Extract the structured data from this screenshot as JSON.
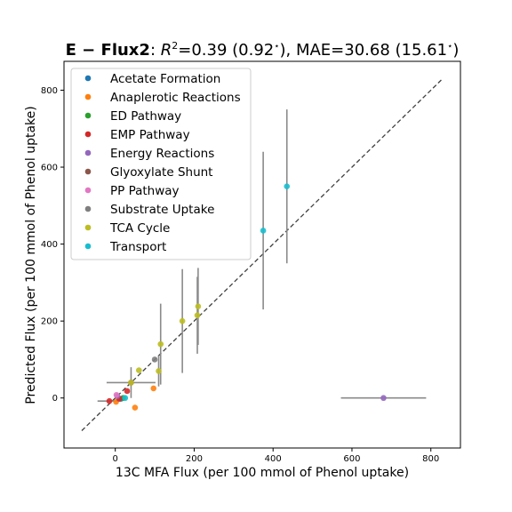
{
  "chart_data": {
    "type": "scatter",
    "title": {
      "model": "E − Flux2",
      "r2_label": "R",
      "r2_sup": "2",
      "stats": "=0.39 (0.92",
      "star": "⋆",
      "mid": "), MAE=30.68 (15.61",
      "end": ")"
    },
    "xlabel": "13C MFA Flux (per 100 mmol of Phenol uptake)",
    "ylabel": "Predicted Flux (per 100 mmol of Phenol uptake)",
    "xlim": [
      -130,
      875
    ],
    "ylim": [
      -130,
      875
    ],
    "xticks": [
      0,
      200,
      400,
      600,
      800
    ],
    "yticks": [
      0,
      200,
      400,
      600,
      800
    ],
    "identity_line": [
      -85,
      830
    ],
    "legend_position": "upper-left",
    "colors": {
      "Acetate Formation": "#1f77b4",
      "Anaplerotic Reactions": "#ff7f0e",
      "ED Pathway": "#2ca02c",
      "EMP Pathway": "#d62728",
      "Energy Reactions": "#9467bd",
      "Glyoxylate Shunt": "#8c564b",
      "PP Pathway": "#e377c2",
      "Substrate Uptake": "#7f7f7f",
      "TCA Cycle": "#bcbd22",
      "Transport": "#17becf"
    },
    "series": [
      {
        "name": "Acetate Formation",
        "points": [
          {
            "x": 15,
            "y": -2,
            "xerr": 10,
            "yerr": 5
          }
        ]
      },
      {
        "name": "Anaplerotic Reactions",
        "points": [
          {
            "x": 97,
            "y": 25,
            "xerr": 0,
            "yerr": 0
          },
          {
            "x": 50,
            "y": -25,
            "xerr": 0,
            "yerr": 0
          },
          {
            "x": 2,
            "y": -10,
            "xerr": 0,
            "yerr": 0
          }
        ]
      },
      {
        "name": "ED Pathway",
        "points": [
          {
            "x": 20,
            "y": 0,
            "xerr": 0,
            "yerr": 0
          }
        ]
      },
      {
        "name": "EMP Pathway",
        "points": [
          {
            "x": -15,
            "y": -8,
            "xerr": 30,
            "yerr": 0
          },
          {
            "x": 30,
            "y": 18,
            "xerr": 0,
            "yerr": 0
          },
          {
            "x": 10,
            "y": -2,
            "xerr": 0,
            "yerr": 0
          }
        ]
      },
      {
        "name": "Energy Reactions",
        "points": [
          {
            "x": 680,
            "y": 0,
            "xerr": 108,
            "yerr": 0
          },
          {
            "x": 5,
            "y": 5,
            "xerr": 0,
            "yerr": 0
          }
        ]
      },
      {
        "name": "Glyoxylate Shunt",
        "points": [
          {
            "x": 40,
            "y": 40,
            "xerr": 0,
            "yerr": 0
          }
        ]
      },
      {
        "name": "PP Pathway",
        "points": [
          {
            "x": 3,
            "y": 8,
            "xerr": 0,
            "yerr": 0
          }
        ]
      },
      {
        "name": "Substrate Uptake",
        "points": [
          {
            "x": 100,
            "y": 100,
            "xerr": 0,
            "yerr": 0
          }
        ]
      },
      {
        "name": "TCA Cycle",
        "points": [
          {
            "x": 60,
            "y": 72,
            "xerr": 0,
            "yerr": 0
          },
          {
            "x": 110,
            "y": 70,
            "xerr": 0,
            "yerr": 0
          },
          {
            "x": 115,
            "y": 140,
            "xerr": 0,
            "yerr": 0
          },
          {
            "x": 170,
            "y": 200,
            "xerr": 0,
            "yerr": 0
          },
          {
            "x": 208,
            "y": 215,
            "xerr": 0,
            "yerr": 0
          },
          {
            "x": 210,
            "y": 238,
            "xerr": 0,
            "yerr": 0
          },
          {
            "x": 40,
            "y": 40,
            "xerr": 0,
            "yerr": 0
          }
        ]
      },
      {
        "name": "Transport",
        "points": [
          {
            "x": 375,
            "y": 435,
            "xerr": 0,
            "yerr": 0
          },
          {
            "x": 435,
            "y": 550,
            "xerr": 10,
            "yerr": 0
          },
          {
            "x": 25,
            "y": 0,
            "xerr": 0,
            "yerr": 0
          }
        ]
      }
    ],
    "error_bars_gray": [
      {
        "x": 375,
        "y": 435,
        "xerr": 0,
        "yerr": 205
      },
      {
        "x": 435,
        "y": 550,
        "xerr": 0,
        "yerr": 200
      },
      {
        "x": 170,
        "y": 200,
        "xerr": 0,
        "yerr": 135
      },
      {
        "x": 208,
        "y": 215,
        "xerr": 0,
        "yerr": 100
      },
      {
        "x": 210,
        "y": 238,
        "xerr": 0,
        "yerr": 100
      },
      {
        "x": 115,
        "y": 140,
        "xerr": 0,
        "yerr": 105
      },
      {
        "x": 110,
        "y": 70,
        "xerr": 0,
        "yerr": 40
      },
      {
        "x": 40,
        "y": 40,
        "xerr": 62,
        "yerr": 40
      },
      {
        "x": -15,
        "y": -8,
        "xerr": 30,
        "yerr": 0
      },
      {
        "x": 680,
        "y": 0,
        "xerr": 108,
        "yerr": 0
      }
    ]
  }
}
